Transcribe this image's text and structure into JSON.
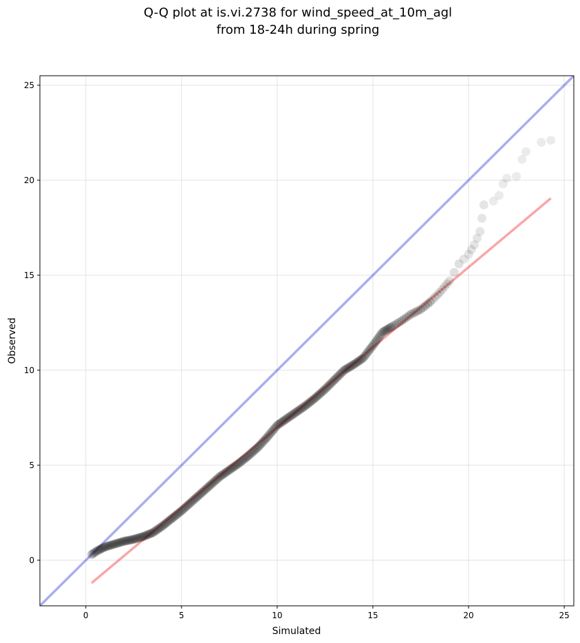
{
  "chart_data": {
    "type": "scatter",
    "title_line1": "Q-Q plot at is.vi.2738 for wind_speed_at_10m_agl",
    "title_line2": "from 18-24h during spring",
    "xlabel": "Simulated",
    "ylabel": "Observed",
    "xlim": [
      -2.4,
      25.5
    ],
    "ylim": [
      -2.4,
      25.5
    ],
    "xticks": [
      0,
      5,
      10,
      15,
      20,
      25
    ],
    "yticks": [
      0,
      5,
      10,
      15,
      20,
      25
    ],
    "grid": true,
    "reference_line": {
      "x": [
        -2.4,
        25.5
      ],
      "y": [
        -2.4,
        25.5
      ],
      "color": "#0000dd"
    },
    "fit_line": {
      "x": [
        0.3,
        24.3
      ],
      "y": [
        -1.2,
        19.05
      ],
      "color": "#ee0000"
    },
    "point_color": "#000000",
    "quantile_curve": [
      [
        0.3,
        0.3
      ],
      [
        0.6,
        0.5
      ],
      [
        1.0,
        0.7
      ],
      [
        1.5,
        0.85
      ],
      [
        2.0,
        1.0
      ],
      [
        2.5,
        1.1
      ],
      [
        3.0,
        1.25
      ],
      [
        3.5,
        1.45
      ],
      [
        4.0,
        1.8
      ],
      [
        4.5,
        2.2
      ],
      [
        5.0,
        2.6
      ],
      [
        5.5,
        3.05
      ],
      [
        6.0,
        3.5
      ],
      [
        6.5,
        3.95
      ],
      [
        7.0,
        4.4
      ],
      [
        7.5,
        4.75
      ],
      [
        8.0,
        5.1
      ],
      [
        8.5,
        5.5
      ],
      [
        9.0,
        5.95
      ],
      [
        9.5,
        6.5
      ],
      [
        10.0,
        7.1
      ],
      [
        10.5,
        7.45
      ],
      [
        11.0,
        7.8
      ],
      [
        11.5,
        8.15
      ],
      [
        12.0,
        8.55
      ],
      [
        12.5,
        9.0
      ],
      [
        13.0,
        9.5
      ],
      [
        13.5,
        10.0
      ],
      [
        14.0,
        10.3
      ],
      [
        14.5,
        10.65
      ],
      [
        15.0,
        11.3
      ],
      [
        15.5,
        12.0
      ],
      [
        16.0,
        12.3
      ],
      [
        16.5,
        12.6
      ],
      [
        17.0,
        12.95
      ],
      [
        17.5,
        13.2
      ],
      [
        18.0,
        13.6
      ],
      [
        18.5,
        14.1
      ],
      [
        19.0,
        14.7
      ],
      [
        19.5,
        15.6
      ],
      [
        20.0,
        16.1
      ],
      [
        20.3,
        16.6
      ],
      [
        20.6,
        17.3
      ],
      [
        20.8,
        18.7
      ]
    ],
    "tail_points": [
      [
        21.3,
        18.9
      ],
      [
        21.6,
        19.2
      ],
      [
        21.8,
        19.8
      ],
      [
        22.0,
        20.1
      ],
      [
        22.5,
        20.2
      ],
      [
        22.8,
        21.1
      ],
      [
        23.0,
        21.5
      ],
      [
        23.8,
        22.0
      ],
      [
        24.3,
        22.1
      ]
    ]
  }
}
